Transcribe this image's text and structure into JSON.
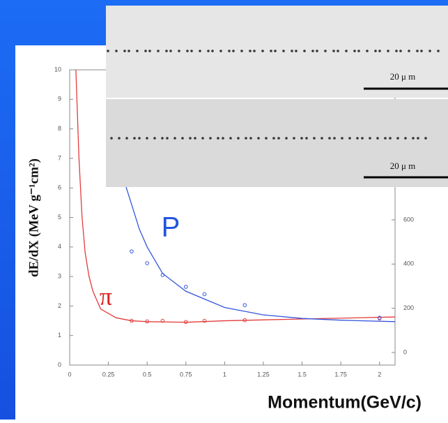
{
  "chart_data": {
    "type": "line",
    "y_label": "dE/dX (MeV g⁻¹cm²)",
    "x_label": "Momentum(GeV/c)",
    "annotations": [
      {
        "text": "P",
        "color": "#2255dd"
      },
      {
        "text": "π",
        "color": "#dd2222"
      }
    ],
    "xlim": [
      0,
      2.1
    ],
    "xticks": [
      0,
      0.25,
      0.5,
      0.75,
      1,
      1.25,
      1.5,
      1.75,
      2
    ],
    "ylim": [
      0,
      10
    ],
    "yticks": [
      0,
      1,
      2,
      3,
      4,
      5,
      6,
      7,
      8,
      9,
      10
    ],
    "y2lim": [
      -57,
      1279
    ],
    "y2ticks": [
      0,
      200,
      400,
      600
    ],
    "series": [
      {
        "color": "#e23b3b",
        "markers": false,
        "x": [
          0.04,
          0.06,
          0.08,
          0.1,
          0.125,
          0.15,
          0.2,
          0.3,
          0.4,
          0.5,
          0.75,
          1,
          1.5,
          2.1
        ],
        "values": [
          10,
          7,
          5,
          3.8,
          3,
          2.5,
          1.9,
          1.6,
          1.5,
          1.47,
          1.45,
          1.5,
          1.56,
          1.63
        ]
      },
      {
        "color": "#3355dd",
        "markers": false,
        "x": [
          0.36,
          0.45,
          0.5,
          0.6,
          0.75,
          1,
          1.25,
          1.5,
          1.75,
          2.1
        ],
        "values": [
          6.1,
          4.6,
          4,
          3.1,
          2.5,
          1.95,
          1.7,
          1.58,
          1.52,
          1.47
        ]
      },
      {
        "color": "#e23b3b",
        "markers": true,
        "x": [
          0.4,
          0.5,
          0.6,
          0.75,
          0.87,
          1.13,
          2
        ],
        "values": [
          1.5,
          1.48,
          1.5,
          1.46,
          1.5,
          1.52,
          1.58
        ]
      },
      {
        "color": "#3355dd",
        "markers": true,
        "x": [
          0.4,
          0.5,
          0.6,
          0.75,
          0.87,
          1.13,
          2
        ],
        "values": [
          3.85,
          3.45,
          3.05,
          2.65,
          2.4,
          2.03,
          1.6
        ]
      }
    ],
    "images": [
      {
        "scale_label": "20 μ m"
      },
      {
        "scale_label": "20 μ m"
      }
    ]
  }
}
